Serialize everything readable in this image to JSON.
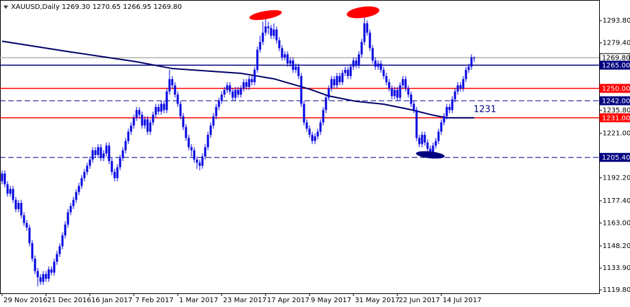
{
  "chart_data": {
    "type": "candlestick",
    "title": "XAUUSD,Daily  1269.30 1270.65 1266.95 1269.80",
    "color": "#0000e0",
    "open": [
      1190,
      1195,
      1188,
      1182,
      1185,
      1178,
      1172,
      1176,
      1168,
      1163,
      1160,
      1150,
      1140,
      1132,
      1128,
      1125,
      1130,
      1127,
      1133,
      1131,
      1138,
      1143,
      1148,
      1155,
      1162,
      1170,
      1174,
      1178,
      1183,
      1187,
      1192,
      1196,
      1200,
      1204,
      1210,
      1207,
      1212,
      1205,
      1208,
      1213,
      1203,
      1196,
      1192,
      1199,
      1205,
      1210,
      1216,
      1222,
      1226,
      1231,
      1236,
      1233,
      1226,
      1230,
      1222,
      1228,
      1233,
      1238,
      1235,
      1240,
      1236,
      1248,
      1256,
      1252,
      1246,
      1240,
      1232,
      1225,
      1218,
      1212,
      1210,
      1204,
      1202,
      1200,
      1206,
      1212,
      1220,
      1226,
      1232,
      1238,
      1242,
      1246,
      1249,
      1252,
      1248,
      1244,
      1249,
      1246,
      1250,
      1254,
      1251,
      1256,
      1254,
      1262,
      1275,
      1280,
      1286,
      1290,
      1289,
      1284,
      1288,
      1281,
      1276,
      1270,
      1272,
      1266,
      1268,
      1262,
      1264,
      1258,
      1240,
      1228,
      1224,
      1220,
      1216,
      1219,
      1222,
      1228,
      1236,
      1244,
      1250,
      1256,
      1252,
      1258,
      1254,
      1260,
      1262,
      1258,
      1264,
      1268,
      1265,
      1272,
      1280,
      1292,
      1286,
      1276,
      1268,
      1264,
      1266,
      1262,
      1258,
      1254,
      1250,
      1245,
      1249,
      1244,
      1252,
      1256,
      1250,
      1246,
      1240,
      1236,
      1218,
      1214,
      1220,
      1215,
      1211,
      1209,
      1213,
      1216,
      1222,
      1228,
      1232,
      1238,
      1236,
      1243,
      1248,
      1252,
      1250,
      1256,
      1262,
      1264,
      1269.3
    ],
    "high": [
      1197,
      1197,
      1190,
      1187,
      1187,
      1180,
      1178,
      1178,
      1170,
      1165,
      1162,
      1152,
      1142,
      1134,
      1130,
      1132,
      1132,
      1135,
      1135,
      1140,
      1145,
      1150,
      1157,
      1164,
      1172,
      1176,
      1180,
      1185,
      1189,
      1194,
      1198,
      1202,
      1206,
      1212,
      1212,
      1214,
      1214,
      1210,
      1215,
      1215,
      1205,
      1198,
      1201,
      1207,
      1212,
      1218,
      1224,
      1228,
      1233,
      1238,
      1238,
      1235,
      1232,
      1232,
      1230,
      1235,
      1240,
      1240,
      1242,
      1242,
      1250,
      1262,
      1258,
      1254,
      1248,
      1242,
      1234,
      1227,
      1220,
      1214,
      1212,
      1206,
      1204,
      1208,
      1214,
      1222,
      1228,
      1234,
      1240,
      1244,
      1248,
      1251,
      1254,
      1254,
      1250,
      1251,
      1251,
      1252,
      1256,
      1256,
      1258,
      1258,
      1264,
      1277,
      1284,
      1293,
      1296,
      1293,
      1291,
      1292,
      1290,
      1283,
      1278,
      1274,
      1274,
      1270,
      1270,
      1266,
      1266,
      1260,
      1242,
      1230,
      1226,
      1222,
      1221,
      1224,
      1230,
      1238,
      1246,
      1252,
      1258,
      1258,
      1260,
      1260,
      1262,
      1264,
      1264,
      1266,
      1270,
      1270,
      1274,
      1282,
      1296,
      1294,
      1288,
      1278,
      1270,
      1268,
      1268,
      1264,
      1260,
      1256,
      1252,
      1251,
      1251,
      1254,
      1258,
      1258,
      1252,
      1248,
      1242,
      1238,
      1220,
      1222,
      1222,
      1217,
      1213,
      1215,
      1218,
      1224,
      1230,
      1234,
      1240,
      1240,
      1245,
      1250,
      1254,
      1254,
      1258,
      1264,
      1266,
      1272,
      1270.65
    ],
    "low": [
      1188,
      1186,
      1180,
      1180,
      1176,
      1170,
      1170,
      1166,
      1161,
      1158,
      1148,
      1138,
      1130,
      1122,
      1123,
      1123,
      1125,
      1125,
      1129,
      1129,
      1136,
      1141,
      1146,
      1153,
      1160,
      1168,
      1172,
      1176,
      1181,
      1185,
      1190,
      1194,
      1198,
      1202,
      1205,
      1205,
      1203,
      1203,
      1206,
      1201,
      1194,
      1190,
      1190,
      1197,
      1203,
      1208,
      1214,
      1220,
      1224,
      1229,
      1231,
      1224,
      1224,
      1220,
      1220,
      1226,
      1231,
      1233,
      1233,
      1234,
      1234,
      1246,
      1250,
      1244,
      1238,
      1230,
      1223,
      1216,
      1210,
      1206,
      1202,
      1198,
      1197,
      1198,
      1204,
      1210,
      1218,
      1224,
      1230,
      1236,
      1240,
      1244,
      1247,
      1246,
      1242,
      1242,
      1244,
      1244,
      1248,
      1249,
      1249,
      1252,
      1252,
      1260,
      1273,
      1278,
      1284,
      1285,
      1282,
      1282,
      1279,
      1274,
      1268,
      1268,
      1264,
      1264,
      1260,
      1260,
      1256,
      1238,
      1226,
      1222,
      1218,
      1214,
      1214,
      1217,
      1220,
      1226,
      1234,
      1242,
      1248,
      1250,
      1250,
      1252,
      1252,
      1258,
      1256,
      1256,
      1262,
      1263,
      1263,
      1270,
      1278,
      1284,
      1274,
      1266,
      1262,
      1262,
      1260,
      1256,
      1252,
      1248,
      1243,
      1243,
      1242,
      1242,
      1250,
      1248,
      1244,
      1238,
      1234,
      1216,
      1212,
      1212,
      1213,
      1207,
      1206,
      1207,
      1211,
      1214,
      1220,
      1226,
      1230,
      1234,
      1234,
      1241,
      1246,
      1248,
      1248,
      1254,
      1260,
      1262,
      1266.95
    ],
    "close": [
      1195,
      1188,
      1182,
      1185,
      1178,
      1172,
      1176,
      1168,
      1163,
      1160,
      1150,
      1140,
      1132,
      1128,
      1125,
      1130,
      1127,
      1133,
      1131,
      1138,
      1143,
      1148,
      1155,
      1162,
      1170,
      1174,
      1178,
      1183,
      1187,
      1192,
      1196,
      1200,
      1204,
      1210,
      1207,
      1212,
      1205,
      1208,
      1213,
      1203,
      1196,
      1192,
      1199,
      1205,
      1210,
      1216,
      1222,
      1226,
      1231,
      1236,
      1233,
      1226,
      1230,
      1222,
      1228,
      1233,
      1238,
      1235,
      1240,
      1236,
      1248,
      1256,
      1252,
      1246,
      1240,
      1232,
      1225,
      1218,
      1212,
      1210,
      1204,
      1202,
      1200,
      1206,
      1212,
      1220,
      1226,
      1232,
      1238,
      1242,
      1246,
      1249,
      1252,
      1248,
      1244,
      1249,
      1246,
      1250,
      1254,
      1251,
      1256,
      1254,
      1262,
      1275,
      1280,
      1286,
      1290,
      1289,
      1284,
      1288,
      1281,
      1276,
      1270,
      1272,
      1266,
      1268,
      1262,
      1264,
      1258,
      1240,
      1228,
      1224,
      1220,
      1216,
      1219,
      1222,
      1228,
      1236,
      1244,
      1250,
      1256,
      1252,
      1258,
      1254,
      1260,
      1262,
      1258,
      1264,
      1268,
      1265,
      1272,
      1280,
      1292,
      1286,
      1276,
      1268,
      1264,
      1266,
      1262,
      1258,
      1254,
      1250,
      1245,
      1249,
      1244,
      1252,
      1256,
      1250,
      1246,
      1240,
      1236,
      1218,
      1214,
      1220,
      1215,
      1211,
      1209,
      1213,
      1216,
      1222,
      1228,
      1232,
      1238,
      1236,
      1243,
      1248,
      1252,
      1250,
      1256,
      1262,
      1264,
      1270,
      1269.8
    ],
    "moving_average": {
      "color": "#000066",
      "x": [
        0,
        24,
        49,
        62,
        87,
        99,
        112,
        119,
        129,
        139,
        149,
        157,
        162,
        172
      ],
      "values": [
        1280.5,
        1273.8,
        1267.2,
        1262.8,
        1259.7,
        1256.2,
        1249.5,
        1245.1,
        1241.6,
        1239.8,
        1236.2,
        1232.7,
        1231,
        1231
      ]
    },
    "levels": [
      {
        "value": 1269.8,
        "label": "1269.80",
        "color": "#b0b0b0",
        "style": "solid"
      },
      {
        "value": 1265,
        "label": "1265.00",
        "color": "#000080",
        "style": "solid"
      },
      {
        "value": 1250,
        "label": "1250.00",
        "color": "#ff0000",
        "style": "solid"
      },
      {
        "value": 1242,
        "label": "1242.00",
        "color": "#000080",
        "style": "dashed"
      },
      {
        "value": 1231,
        "label": "1231.00",
        "color": "#ff0000",
        "style": "solid"
      },
      {
        "value": 1205.4,
        "label": "1205.40",
        "color": "#000080",
        "style": "dashed"
      }
    ],
    "annotation": "1231",
    "xlim": [
      -0.75,
      217.5
    ],
    "ylim": [
      1117.6,
      1307.1
    ],
    "xticks": [
      {
        "value": 0,
        "label": "29 Nov 2016"
      },
      {
        "value": 16,
        "label": "21 Dec 2016"
      },
      {
        "value": 32,
        "label": "16 Jan 2017"
      },
      {
        "value": 48,
        "label": "7 Feb 2017"
      },
      {
        "value": 64,
        "label": "1 Mar 2017"
      },
      {
        "value": 80,
        "label": "23 Mar 2017"
      },
      {
        "value": 96,
        "label": "17 Apr 2017"
      },
      {
        "value": 112,
        "label": "9 May 2017"
      },
      {
        "value": 128,
        "label": "31 May 2017"
      },
      {
        "value": 144,
        "label": "22 Jun 2017"
      },
      {
        "value": 160,
        "label": "14 Jul 2017"
      }
    ],
    "yticks": [
      {
        "value": 1293.8,
        "label": "1293.80"
      },
      {
        "value": 1279.4,
        "label": "1279.40"
      },
      {
        "value": 1235.8,
        "label": "1235.80"
      },
      {
        "value": 1221,
        "label": "1221.00"
      },
      {
        "value": 1192.2,
        "label": "1192.20"
      },
      {
        "value": 1177.4,
        "label": "1177.40"
      },
      {
        "value": 1163,
        "label": "1163.00"
      },
      {
        "value": 1148.2,
        "label": "1148.20"
      },
      {
        "value": 1133.9,
        "label": "1133.90"
      },
      {
        "value": 1119.8,
        "label": "1119.80"
      }
    ]
  }
}
